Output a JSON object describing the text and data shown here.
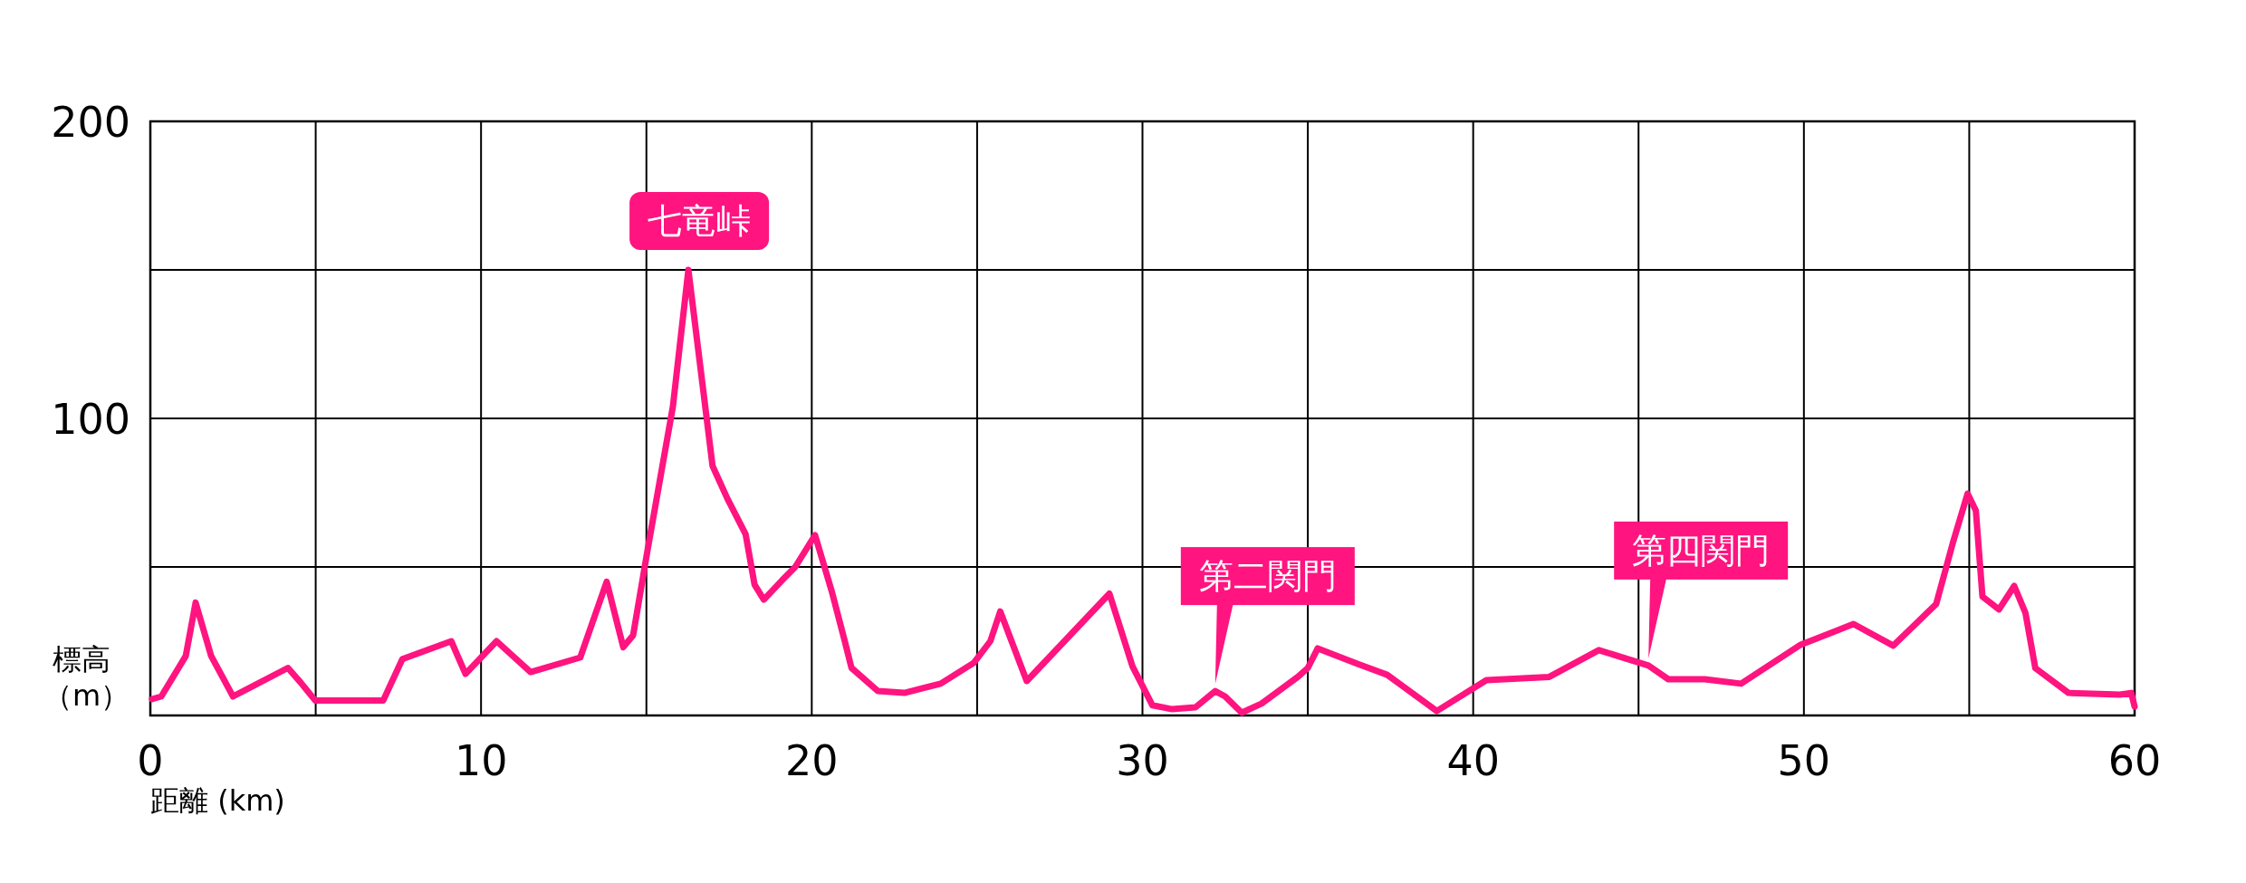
{
  "chart_data": {
    "type": "line",
    "xlabel": "距離 (km)",
    "ylabel": "標高（m）",
    "xlim": [
      0,
      60
    ],
    "xticks": [
      0,
      {
        "value": 5,
        "label": null
      },
      10,
      {
        "value": 15,
        "label": null
      },
      20,
      {
        "value": 25,
        "label": null
      },
      30,
      {
        "value": 35,
        "label": null
      },
      40,
      {
        "value": 45,
        "label": null
      },
      50,
      {
        "value": 55,
        "label": null
      },
      60
    ],
    "ylim": [
      0,
      200
    ],
    "yticks": [
      {
        "value": 0,
        "label": null
      },
      {
        "value": 50,
        "label": null
      },
      100,
      {
        "value": 150,
        "label": null
      },
      200
    ],
    "grid": true,
    "marker": "none",
    "line_style": "solid",
    "series": [
      {
        "color": "#ff1480",
        "x": [
          0.05,
          0.33,
          1.07,
          1.37,
          1.84,
          2.5,
          4.16,
          4.55,
          4.99,
          7.04,
          7.62,
          9.1,
          9.53,
          10.47,
          11.5,
          13.0,
          13.8,
          14.3,
          14.6,
          15.04,
          15.8,
          16.27,
          17.0,
          17.45,
          18.0,
          18.27,
          18.55,
          19.1,
          19.5,
          20.1,
          20.6,
          21.0,
          21.2,
          22.0,
          22.8,
          23.9,
          24.9,
          25.4,
          25.7,
          26.5,
          29.0,
          29.7,
          30.3,
          30.9,
          31.6,
          32.2,
          32.5,
          33.0,
          33.6,
          34.7,
          35.0,
          35.3,
          36.5,
          37.4,
          38.9,
          40.4,
          42.3,
          43.8,
          45.3,
          45.9,
          47.0,
          48.1,
          49.9,
          51.5,
          52.7,
          54.0,
          54.5,
          54.95,
          55.2,
          55.4,
          55.9,
          56.36,
          56.7,
          57.0,
          58.0,
          59.56,
          59.9,
          60
        ],
        "values": [
          5.5,
          6.4,
          20,
          38,
          20,
          6.4,
          16,
          11,
          5,
          5,
          19,
          25,
          14,
          25,
          14.6,
          19.5,
          45,
          23,
          27,
          56,
          104,
          150,
          84,
          73,
          61,
          44,
          39,
          45.5,
          50,
          60.7,
          42,
          25,
          16,
          8.2,
          7.6,
          10.7,
          17.7,
          25,
          35,
          11.6,
          41,
          16.5,
          3.4,
          2.1,
          2.7,
          8.2,
          6.4,
          0.9,
          4,
          13,
          16,
          22.6,
          17.4,
          13.7,
          1.5,
          11.9,
          13,
          22,
          16.8,
          12.2,
          12.2,
          10.7,
          23.8,
          30.8,
          23.5,
          37.5,
          58,
          74.7,
          69,
          40,
          35.7,
          43.6,
          34.5,
          15.9,
          7.6,
          7,
          7.6,
          3
        ]
      }
    ],
    "annotations": [
      {
        "text": "七竜峠",
        "x": 16.27,
        "y": 150
      },
      {
        "text": "第二関門",
        "x": 32.2,
        "y": 8.2
      },
      {
        "text": "第四関門",
        "x": 45.3,
        "y": 16.8
      }
    ]
  }
}
